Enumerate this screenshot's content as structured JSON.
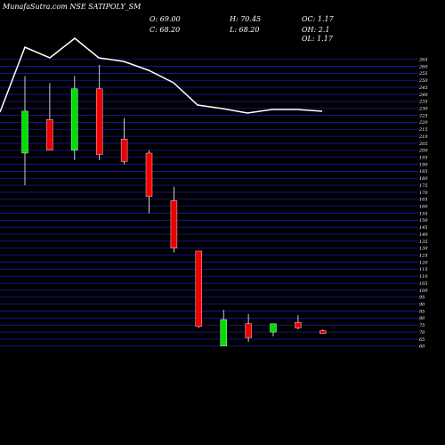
{
  "header": {
    "title": "MunafaSutra.com NSE SATIPOLY_SM",
    "open": "O: 69.00",
    "high": "H: 70.45",
    "oc": "OC: 1.17",
    "close": "C: 68.20",
    "low": "L: 68.20",
    "oh": "OH: 2.1",
    "ol": "OL: 1.17"
  },
  "colors": {
    "background": "#000000",
    "grid": "#1a1aa8",
    "up": "#00e000",
    "down": "#ee0000",
    "wick": "#ffffff",
    "line": "#ffffff"
  },
  "chart_data": {
    "type": "candlestick",
    "y_ticks": [
      60,
      65,
      70,
      75,
      80,
      85,
      90,
      95,
      100,
      105,
      110,
      115,
      120,
      125,
      130,
      135,
      140,
      145,
      150,
      155,
      160,
      165,
      170,
      175,
      180,
      185,
      190,
      195,
      200,
      205,
      210,
      215,
      220,
      225,
      230,
      235,
      240,
      245,
      250,
      255,
      260,
      265
    ],
    "ylim": [
      58,
      268
    ],
    "grid": true,
    "candles": [
      {
        "open": 198,
        "close": 228,
        "high": 253,
        "low": 175,
        "dir": "up"
      },
      {
        "open": 222,
        "close": 200,
        "high": 248,
        "low": 200,
        "dir": "down"
      },
      {
        "open": 200,
        "close": 244,
        "high": 253,
        "low": 193,
        "dir": "up"
      },
      {
        "open": 244,
        "close": 197,
        "high": 261,
        "low": 193,
        "dir": "down"
      },
      {
        "open": 208,
        "close": 192,
        "high": 223,
        "low": 190,
        "dir": "down"
      },
      {
        "open": 198,
        "close": 167,
        "high": 200,
        "low": 155,
        "dir": "down"
      },
      {
        "open": 164,
        "close": 130,
        "high": 174,
        "low": 127,
        "dir": "down"
      },
      {
        "open": 128,
        "close": 74,
        "high": 128,
        "low": 73,
        "dir": "down"
      },
      {
        "open": 60,
        "close": 79,
        "high": 86,
        "low": 60,
        "dir": "up"
      },
      {
        "open": 76,
        "close": 66,
        "high": 83,
        "low": 63,
        "dir": "down"
      },
      {
        "open": 70,
        "close": 76,
        "high": 76,
        "low": 67,
        "dir": "up"
      },
      {
        "open": 77,
        "close": 73,
        "high": 82,
        "low": 72,
        "dir": "down"
      },
      {
        "open": 71,
        "close": 69,
        "high": 72,
        "low": 69,
        "dir": "down"
      }
    ]
  }
}
